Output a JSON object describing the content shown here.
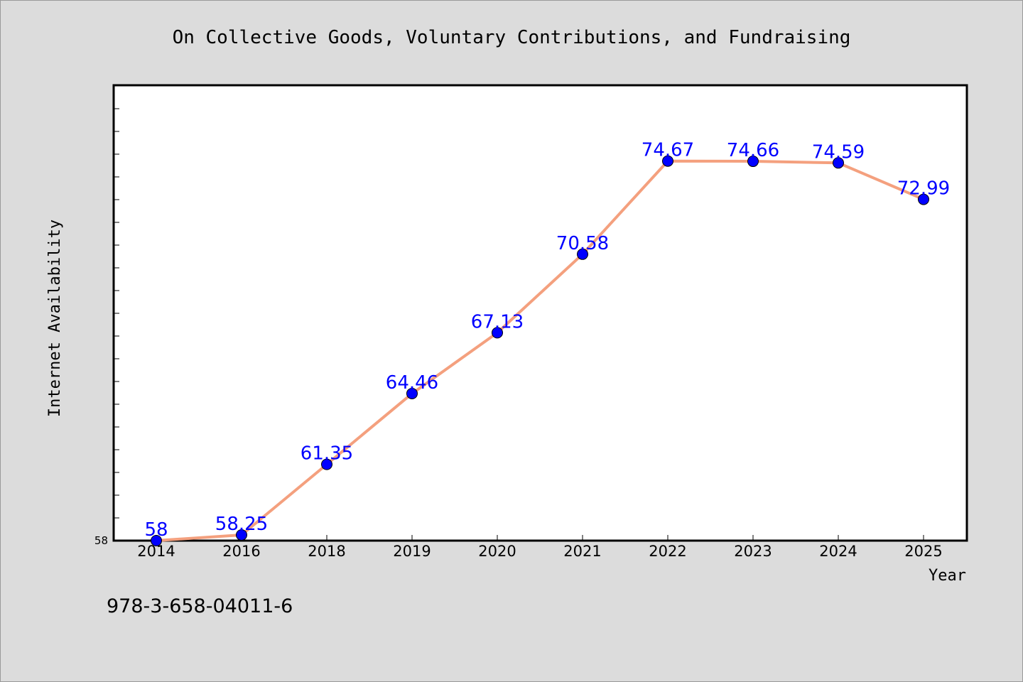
{
  "chart_data": {
    "type": "line",
    "title": "On Collective Goods, Voluntary Contributions, and Fundraising",
    "xlabel": "Year",
    "ylabel": "Internet Availability",
    "categories": [
      "2014",
      "2016",
      "2018",
      "2019",
      "2020",
      "2021",
      "2022",
      "2023",
      "2024",
      "2025"
    ],
    "series": [
      {
        "values": [
          58,
          58.25,
          61.35,
          64.46,
          67.13,
          70.58,
          74.67,
          74.66,
          74.59,
          72.99
        ],
        "value_labels": [
          "58",
          "58.25",
          "61.35",
          "64.46",
          "67.13",
          "70.58",
          "74.67",
          "74.66",
          "74.59",
          "72.99"
        ],
        "line_color": "#f4a07e",
        "marker_color": "#0000ff"
      }
    ],
    "ylim": [
      58,
      78
    ],
    "y_tick_label": "58",
    "grid": false,
    "legend": "none"
  },
  "footer": {
    "isbn": "978-3-658-04011-6"
  },
  "colors": {
    "background": "#dcdcdc",
    "plot_background": "#ffffff"
  }
}
